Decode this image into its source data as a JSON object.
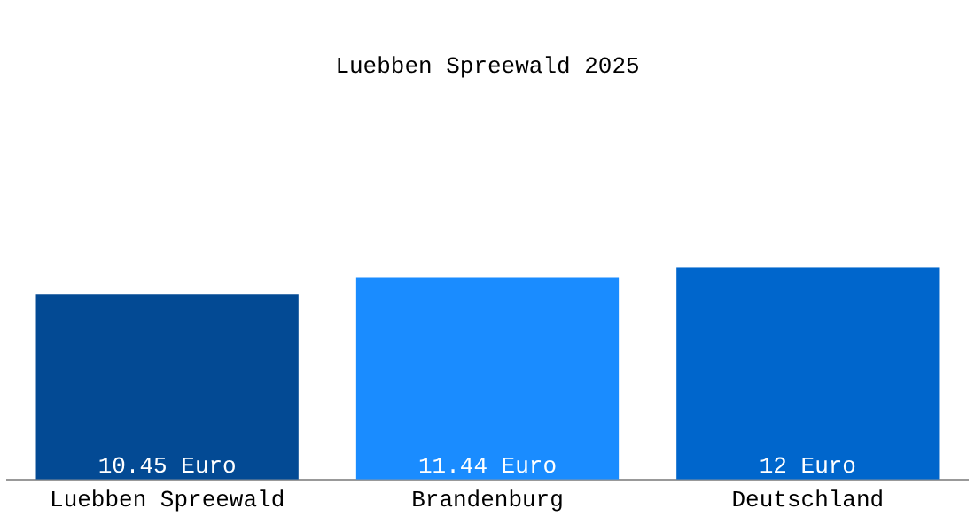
{
  "chart_data": {
    "type": "bar",
    "title": "Luebben Spreewald 2025",
    "categories": [
      "Luebben Spreewald",
      "Brandenburg",
      "Deutschland"
    ],
    "values": [
      10.45,
      11.44,
      12
    ],
    "colors": [
      "#034a94",
      "#1a8cff",
      "#0066cc"
    ],
    "value_labels": [
      "10.45 Euro",
      "11.44 Euro",
      "12 Euro"
    ],
    "tick_labels": "x",
    "legend": false
  }
}
